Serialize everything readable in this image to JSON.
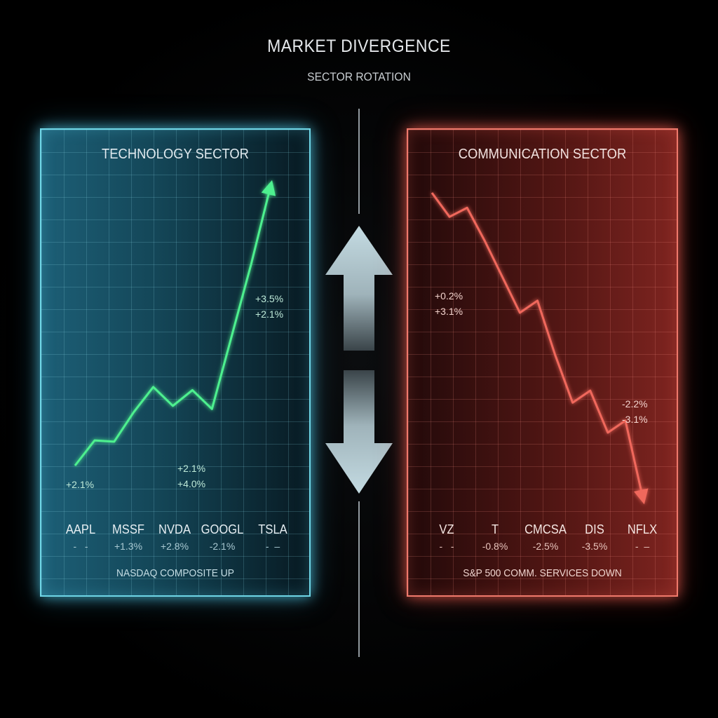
{
  "header": {
    "title": "MARKET DIVERGENCE",
    "subtitle": "SECTOR ROTATION"
  },
  "colors": {
    "tech_accent": "#6fd6e6",
    "tech_line": "#4ef08f",
    "comm_accent": "#f07a6c",
    "comm_line": "#f0685c",
    "arrow": "#a9c3cc"
  },
  "icons": [
    "up-arrow-icon",
    "down-arrow-icon"
  ],
  "chart_data": [
    {
      "type": "line",
      "title": "TECHNOLOGY SECTOR",
      "trend": "up",
      "series": [
        {
          "values": [
            0.0,
            0.4,
            0.38,
            0.85,
            1.25,
            0.95,
            1.2,
            0.9,
            2.05,
            3.2,
            4.45
          ]
        }
      ],
      "annotations": [
        {
          "id": "start",
          "lines": [
            "+2.1%"
          ]
        },
        {
          "id": "mid",
          "lines": [
            "+2.1%",
            "+4.0%"
          ]
        },
        {
          "id": "end",
          "lines": [
            "+3.5%",
            "+2.1%"
          ]
        }
      ],
      "tickers": [
        {
          "symbol": "AAPL",
          "change": "-   -"
        },
        {
          "symbol": "MSSF",
          "change": "+1.3%"
        },
        {
          "symbol": "NVDA",
          "change": "+2.8%"
        },
        {
          "symbol": "GOOGL",
          "change": "-2.1%"
        },
        {
          "symbol": "TSLA",
          "change": "-  –"
        }
      ],
      "footer": "NASDAQ COMPOSITE UP"
    },
    {
      "type": "line",
      "title": "COMMUNICATION SECTOR",
      "trend": "down",
      "series": [
        {
          "values": [
            4.6,
            4.2,
            4.35,
            3.8,
            3.2,
            2.6,
            2.8,
            1.9,
            1.1,
            1.3,
            0.6,
            0.8,
            -0.5
          ]
        }
      ],
      "annotations": [
        {
          "id": "start",
          "lines": [
            "+0.2%",
            "+3.1%"
          ]
        },
        {
          "id": "end",
          "lines": [
            "-2.2%",
            "-3.1%"
          ]
        }
      ],
      "tickers": [
        {
          "symbol": "VZ",
          "change": "-   -"
        },
        {
          "symbol": "T",
          "change": "-0.8%"
        },
        {
          "symbol": "CMCSA",
          "change": "-2.5%"
        },
        {
          "symbol": "DIS",
          "change": "-3.5%"
        },
        {
          "symbol": "NFLX",
          "change": "-  –"
        }
      ],
      "footer": "S&P 500 COMM. SERVICES DOWN"
    }
  ]
}
